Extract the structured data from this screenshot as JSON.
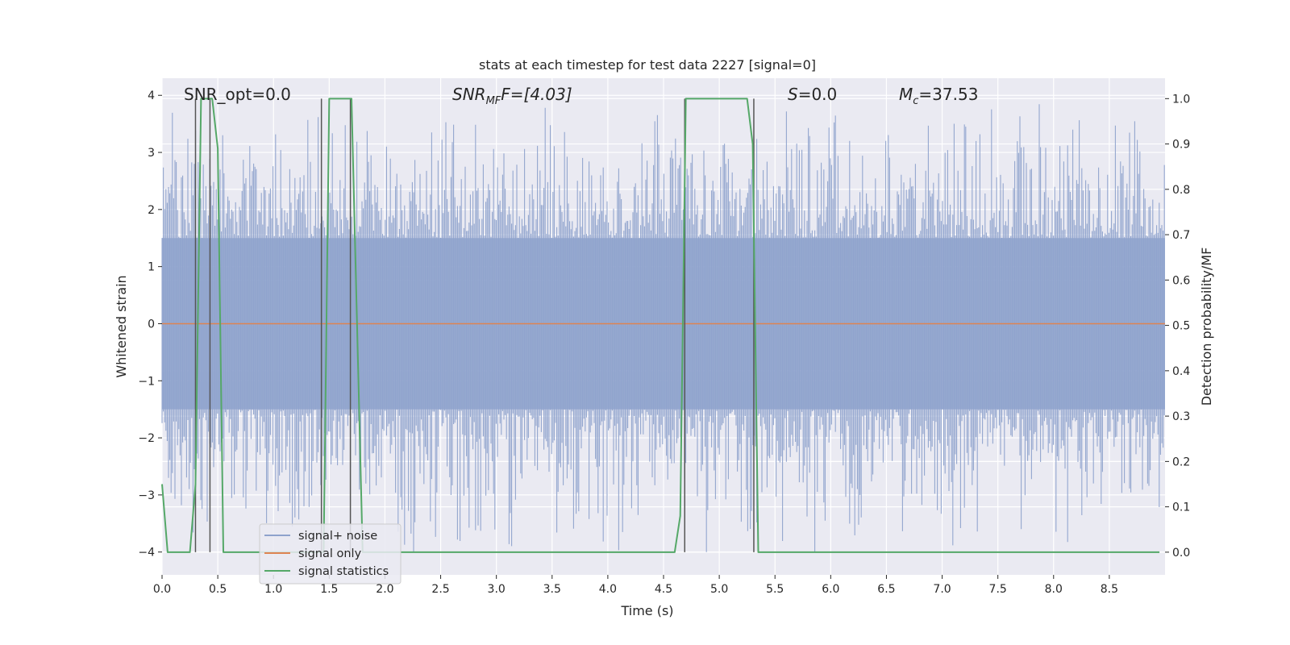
{
  "chart_data": {
    "type": "line",
    "title": "stats at each timestep for test data 2227 [signal=0]",
    "xlabel": "Time (s)",
    "ylabel_left": "Whitened strain",
    "ylabel_right": "Detection probability/MF",
    "xlim": [
      0.0,
      9.0
    ],
    "ylim_left": [
      -4.4,
      4.3
    ],
    "ylim_right": [
      -0.05,
      1.045
    ],
    "x_ticks": [
      "0.0",
      "0.5",
      "1.0",
      "1.5",
      "2.0",
      "2.5",
      "3.0",
      "3.5",
      "4.0",
      "4.5",
      "5.0",
      "5.5",
      "6.0",
      "6.5",
      "7.0",
      "7.5",
      "8.0",
      "8.5"
    ],
    "y_ticks_left": [
      "4",
      "3",
      "2",
      "1",
      "0",
      "−1",
      "−2",
      "−3",
      "−4"
    ],
    "y_ticks_right": [
      "1.0",
      "0.9",
      "0.8",
      "0.7",
      "0.6",
      "0.5",
      "0.4",
      "0.3",
      "0.2",
      "0.1",
      "0.0"
    ],
    "grid": true,
    "legend_position": "lower-left",
    "annotations": {
      "snr_opt": "SNR_opt=0.0",
      "snr_mf_symbol": "SNR",
      "snr_mf_sub": "MF",
      "snr_mf_rest": "F=[4.03]",
      "s_symbol": "S",
      "s_rest": "=0.0",
      "mc_symbol": "M",
      "mc_sub": "c",
      "mc_rest": "=37.53"
    },
    "series": [
      {
        "name": "signal+ noise",
        "color": "#8ea2cc",
        "axis": "left",
        "noise_amplitude_typical": 1.5,
        "noise_spike_max": 4.0
      },
      {
        "name": "signal only",
        "color": "#dd8452",
        "axis": "left",
        "x": [
          0.0,
          9.0
        ],
        "y": [
          0.0,
          0.0
        ]
      },
      {
        "name": "signal statistics",
        "color": "#55a868",
        "axis": "right",
        "x": [
          0.0,
          0.05,
          0.25,
          0.3,
          0.35,
          0.45,
          0.5,
          0.55,
          1.45,
          1.5,
          1.7,
          1.8,
          2.0,
          2.2,
          4.6,
          4.65,
          4.7,
          5.25,
          5.3,
          5.35,
          5.45,
          8.95
        ],
        "y": [
          0.15,
          0.0,
          0.0,
          0.15,
          1.0,
          1.0,
          0.89,
          0.0,
          0.0,
          1.0,
          1.0,
          0.0,
          0.0,
          0.0,
          0.0,
          0.08,
          1.0,
          1.0,
          0.9,
          0.0,
          0.0,
          0.0
        ]
      }
    ],
    "vertical_markers": {
      "color": "#555555",
      "x": [
        0.3,
        0.43,
        1.43,
        1.69,
        4.69,
        5.31
      ]
    }
  }
}
